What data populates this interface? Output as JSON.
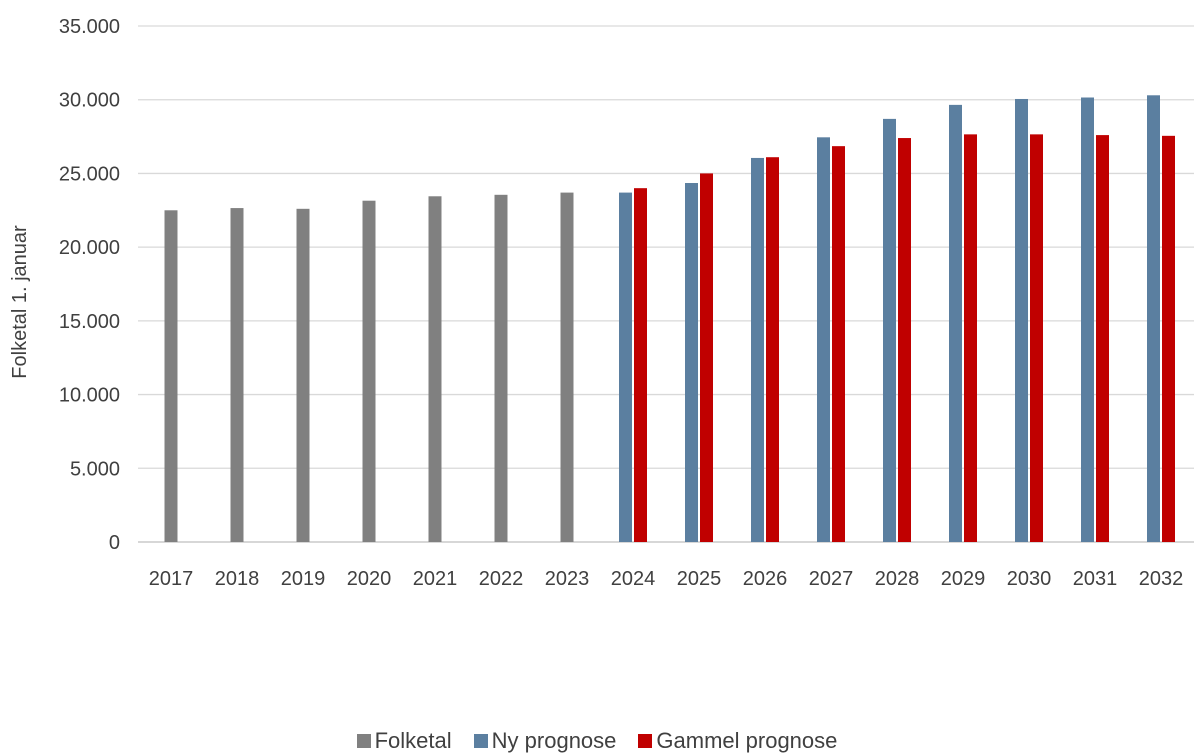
{
  "chart_data": {
    "type": "bar",
    "title": "",
    "xlabel": "",
    "ylabel": "Folketal 1. januar",
    "ylim": [
      0,
      35000
    ],
    "yticks": [
      "0",
      "5.000",
      "10.000",
      "15.000",
      "20.000",
      "25.000",
      "30.000",
      "35.000"
    ],
    "grid": true,
    "legend_position": "bottom",
    "categories": [
      "2017",
      "2018",
      "2019",
      "2020",
      "2021",
      "2022",
      "2023",
      "2024",
      "2025",
      "2026",
      "2027",
      "2028",
      "2029",
      "2030",
      "2031",
      "2032"
    ],
    "series": [
      {
        "name": "Folketal",
        "color": "#808080",
        "values": [
          22500,
          22650,
          22600,
          23150,
          23450,
          23550,
          23700,
          null,
          null,
          null,
          null,
          null,
          null,
          null,
          null,
          null
        ]
      },
      {
        "name": "Ny prognose",
        "color": "#5b7fa0",
        "values": [
          null,
          null,
          null,
          null,
          null,
          null,
          null,
          23700,
          24350,
          26050,
          27450,
          28700,
          29650,
          30050,
          30150,
          30300
        ]
      },
      {
        "name": "Gammel prognose",
        "color": "#c00000",
        "values": [
          null,
          null,
          null,
          null,
          null,
          null,
          null,
          24000,
          25000,
          26100,
          26850,
          27400,
          27650,
          27650,
          27600,
          27550
        ]
      }
    ]
  }
}
